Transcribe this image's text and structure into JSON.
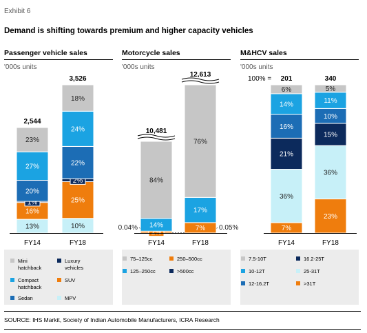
{
  "header": {
    "exhibit": "Exhibit 6",
    "title": "Demand is shifting towards premium and higher capacity vehicles"
  },
  "source": "SOURCE: IHS Markit, Society of Indian Automobile Manufacturers, ICRA Research",
  "colors": {
    "grey": "#c6c6c6",
    "blue": "#1ba3e2",
    "mid_blue": "#1c6db5",
    "navy": "#0c2a5c",
    "orange": "#ef7d0d",
    "light_cyan": "#c7f0f8",
    "legend_bg": "#ececec"
  },
  "chart_data": [
    {
      "type": "bar",
      "subtype": "stacked-100",
      "title": "Passenger vehicle sales",
      "unit_label": "'000s units",
      "categories": [
        "FY14",
        "FY18"
      ],
      "totals": [
        "2,544",
        "3,526"
      ],
      "series": [
        {
          "name": "MPV",
          "values": [
            13,
            10
          ],
          "labels": [
            "13%",
            "10%"
          ],
          "color": "#c7f0f8"
        },
        {
          "name": "SUV",
          "values": [
            16,
            25
          ],
          "labels": [
            "16%",
            "25%"
          ],
          "color": "#ef7d0d"
        },
        {
          "name": "Luxury vehicles",
          "values": [
            1,
            2
          ],
          "labels": [
            "1%",
            "2%"
          ],
          "color": "#0c2a5c"
        },
        {
          "name": "Sedan",
          "values": [
            20,
            22
          ],
          "labels": [
            "20%",
            "22%"
          ],
          "color": "#1c6db5"
        },
        {
          "name": "Compact hatchback",
          "values": [
            27,
            24
          ],
          "labels": [
            "27%",
            "24%"
          ],
          "color": "#1ba3e2"
        },
        {
          "name": "Mini hatchback",
          "values": [
            23,
            18
          ],
          "labels": [
            "23%",
            "18%"
          ],
          "color": "#c6c6c6"
        }
      ]
    },
    {
      "type": "bar",
      "subtype": "stacked-100",
      "title": "Motorcycle sales",
      "unit_label": "'000s units",
      "categories": [
        "FY14",
        "FY18"
      ],
      "totals": [
        "10,481",
        "12,613"
      ],
      "axis_break": true,
      "series": [
        {
          "name": ">500cc",
          "values": [
            0.04,
            0.05
          ],
          "labels": [
            "0.04%",
            "0.05%"
          ],
          "color": "#0c2a5c"
        },
        {
          "name": "250–500cc",
          "values": [
            2,
            7
          ],
          "labels": [
            "2%",
            "7%"
          ],
          "color": "#ef7d0d"
        },
        {
          "name": "125–250cc",
          "values": [
            14,
            17
          ],
          "labels": [
            "14%",
            "17%"
          ],
          "color": "#1ba3e2"
        },
        {
          "name": "75–125cc",
          "values": [
            84,
            76
          ],
          "labels": [
            "84%",
            "76%"
          ],
          "color": "#c6c6c6"
        }
      ]
    },
    {
      "type": "bar",
      "subtype": "stacked-100",
      "title": "M&HCV sales",
      "unit_label": "'000s units",
      "categories": [
        "FY14",
        "FY18"
      ],
      "totals": [
        "201",
        "340"
      ],
      "total_prefix": "100% =",
      "series": [
        {
          "name": ">31T",
          "values": [
            7,
            23
          ],
          "labels": [
            "7%",
            "23%"
          ],
          "color": "#ef7d0d"
        },
        {
          "name": "25-31T",
          "values": [
            36,
            36
          ],
          "labels": [
            "36%",
            "36%"
          ],
          "color": "#c7f0f8"
        },
        {
          "name": "16.2-25T",
          "values": [
            21,
            15
          ],
          "labels": [
            "21%",
            "15%"
          ],
          "color": "#0c2a5c"
        },
        {
          "name": "12-16.2T",
          "values": [
            16,
            10
          ],
          "labels": [
            "16%",
            "10%"
          ],
          "color": "#1c6db5"
        },
        {
          "name": "10-12T",
          "values": [
            14,
            11
          ],
          "labels": [
            "14%",
            "11%"
          ],
          "color": "#1ba3e2"
        },
        {
          "name": "7.5-10T",
          "values": [
            6,
            5
          ],
          "labels": [
            "6%",
            "5%"
          ],
          "color": "#c6c6c6"
        }
      ]
    }
  ],
  "legends": [
    {
      "items": [
        {
          "label": "Mini hatchback",
          "lines": [
            "Mini",
            "hatchback"
          ],
          "color": "#c6c6c6"
        },
        {
          "label": "Luxury vehicles",
          "lines": [
            "Luxury",
            "vehicles"
          ],
          "color": "#0c2a5c"
        },
        {
          "label": "Compact hatchback",
          "lines": [
            "Compact",
            "hatchback"
          ],
          "color": "#1ba3e2"
        },
        {
          "label": "SUV",
          "lines": [
            "SUV"
          ],
          "color": "#ef7d0d"
        },
        {
          "label": "Sedan",
          "lines": [
            "Sedan"
          ],
          "color": "#1c6db5"
        },
        {
          "label": "MPV",
          "lines": [
            "MPV"
          ],
          "color": "#c7f0f8"
        }
      ]
    },
    {
      "items": [
        {
          "label": "75–125cc",
          "lines": [
            "75–125cc"
          ],
          "color": "#c6c6c6"
        },
        {
          "label": "250–500cc",
          "lines": [
            "250–500cc"
          ],
          "color": "#ef7d0d"
        },
        {
          "label": "125–250cc",
          "lines": [
            "125–250cc"
          ],
          "color": "#1ba3e2"
        },
        {
          "label": ">500cc",
          "lines": [
            ">500cc"
          ],
          "color": "#0c2a5c"
        }
      ]
    },
    {
      "items": [
        {
          "label": "7.5-10T",
          "lines": [
            "7.5-10T"
          ],
          "color": "#c6c6c6"
        },
        {
          "label": "16.2-25T",
          "lines": [
            "16.2-25T"
          ],
          "color": "#0c2a5c"
        },
        {
          "label": "10-12T",
          "lines": [
            "10-12T"
          ],
          "color": "#1ba3e2"
        },
        {
          "label": "25-31T",
          "lines": [
            "25-31T"
          ],
          "color": "#c7f0f8"
        },
        {
          "label": "12-16.2T",
          "lines": [
            "12-16.2T"
          ],
          "color": "#1c6db5"
        },
        {
          "label": ">31T",
          "lines": [
            ">31T"
          ],
          "color": "#ef7d0d"
        }
      ]
    }
  ]
}
